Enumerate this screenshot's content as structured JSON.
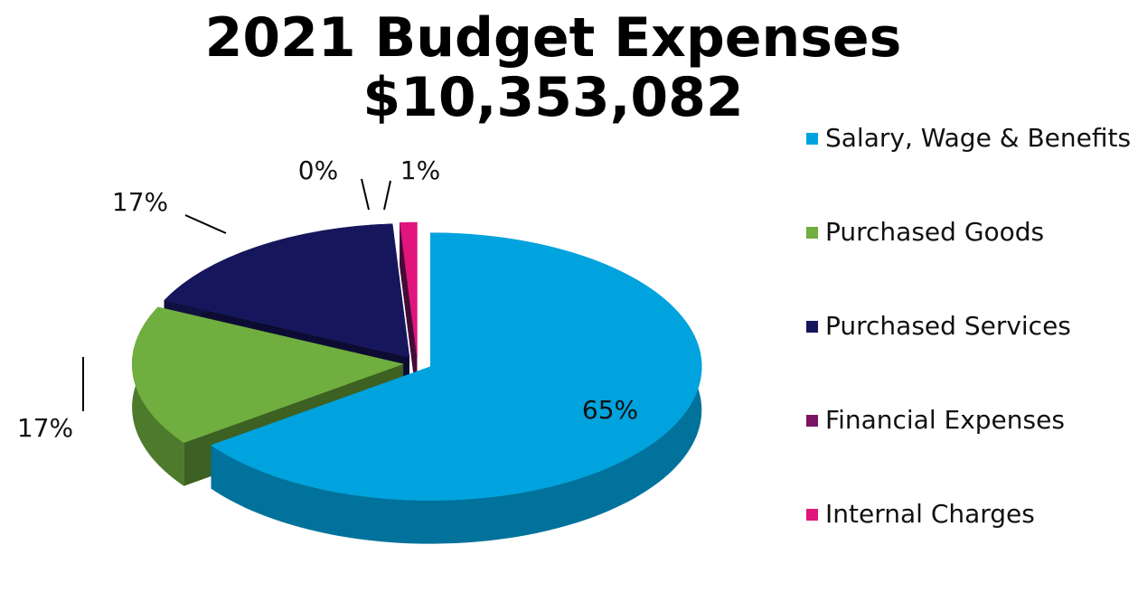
{
  "chart_data": {
    "type": "pie",
    "title": "2021 Budget Expenses",
    "subtitle": "$10,353,082",
    "categories": [
      "Salary, Wage & Benefits",
      "Purchased Goods",
      "Purchased Services",
      "Financial Expenses",
      "Internal Charges"
    ],
    "values": [
      65,
      17,
      17,
      0,
      1
    ],
    "value_labels": [
      "65%",
      "17%",
      "17%",
      "0%",
      "1%"
    ],
    "colors": [
      "#00a3dd",
      "#6fae3f",
      "#16165c",
      "#7b1463",
      "#e2157d"
    ],
    "legend": "right"
  }
}
